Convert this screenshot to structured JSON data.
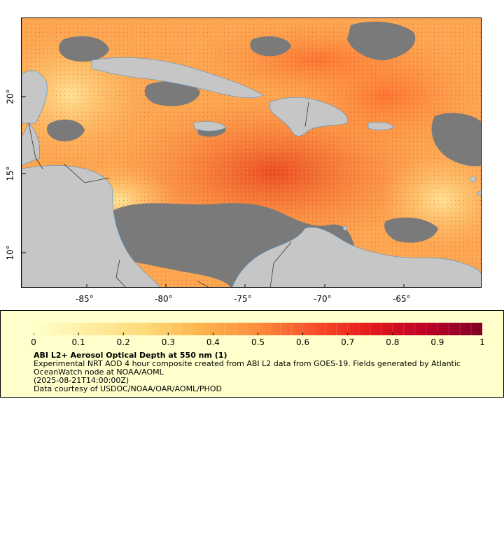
{
  "map": {
    "lon_ticks": [
      "-85°",
      "-80°",
      "-75°",
      "-70°",
      "-65°"
    ],
    "lat_ticks": [
      "20°",
      "15°",
      "10°"
    ],
    "lon_range": [
      -89.0,
      -60.0
    ],
    "lat_range": [
      8.0,
      25.0
    ]
  },
  "colorbar": {
    "ticks": [
      "0",
      "0.1",
      "0.2",
      "0.3",
      "0.4",
      "0.5",
      "0.6",
      "0.7",
      "0.8",
      "0.9",
      "1"
    ],
    "colors": [
      "#ffffcc",
      "#ffeda0",
      "#fed976",
      "#feb24c",
      "#fd8d3c",
      "#fc4e2a",
      "#e31a1c",
      "#bd0026",
      "#800026"
    ]
  },
  "legend": {
    "title": "ABI L2+ Aerosol Optical Depth at 550 nm (1)",
    "line1": "Experimental NRT AOD 4 hour composite created from ABI L2 data from GOES-19. Fields generated by Atlantic OceanWatch node at NOAA/AOML",
    "line2": "(2025-08-21T14:00:00Z)",
    "line3": "Data courtesy of USDOC/NOAA/OAR/AOML/PHOD"
  }
}
